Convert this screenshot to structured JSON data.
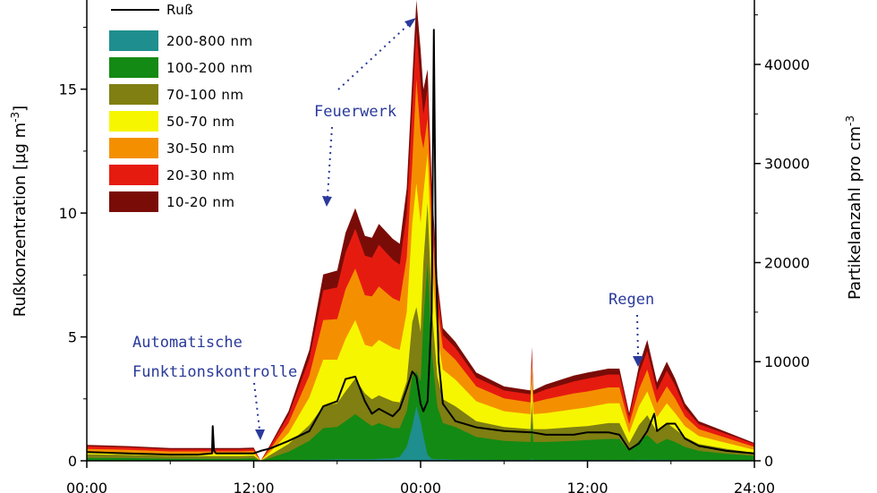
{
  "chart_data": {
    "type": "area",
    "title": "",
    "xlabel": "",
    "ylabel_left": "Rußkonzentration [µg m-3]",
    "ylabel_left_main": "Rußkonzentration [µg m",
    "ylabel_left_sup": "-3",
    "ylabel_left_end": "]",
    "ylabel_right": "Partikelanzahl pro cm-3",
    "ylabel_right_main": "Partikelanzahl pro cm",
    "ylabel_right_sup": "-3",
    "x_unit": "hours since 00:00 of day 1",
    "xlim": [
      0,
      48
    ],
    "ylim_left": [
      0,
      18.6
    ],
    "ylim_right": [
      0,
      46500
    ],
    "x_ticks": [
      {
        "value": 0,
        "label": "00:00"
      },
      {
        "value": 12,
        "label": "12:00"
      },
      {
        "value": 24,
        "label": "00:00"
      },
      {
        "value": 36,
        "label": "12:00"
      },
      {
        "value": 48,
        "label": "24:00"
      }
    ],
    "y_left_ticks": [
      {
        "value": 0,
        "label": "0"
      },
      {
        "value": 5,
        "label": "5"
      },
      {
        "value": 10,
        "label": "10"
      },
      {
        "value": 15,
        "label": "15"
      }
    ],
    "y_right_ticks": [
      {
        "value": 0,
        "label": "0"
      },
      {
        "value": 10000,
        "label": "10000"
      },
      {
        "value": 20000,
        "label": "20000"
      },
      {
        "value": 30000,
        "label": "30000"
      },
      {
        "value": 40000,
        "label": "40000"
      }
    ],
    "x": [
      0,
      3,
      6,
      8,
      9,
      9.1,
      9.3,
      11,
      12,
      12.5,
      13.2,
      14.5,
      16,
      17,
      18,
      18.6,
      19.3,
      20,
      20.5,
      21,
      22,
      22.5,
      23,
      23.4,
      23.7,
      24,
      24.2,
      24.5,
      24.8,
      25.2,
      25.6,
      26.5,
      28,
      30,
      31.9,
      32,
      32.1,
      33,
      35,
      36,
      37.5,
      38.3,
      39,
      39.7,
      40.3,
      41,
      41.7,
      42.3,
      43,
      44,
      46,
      48
    ],
    "series": [
      {
        "name": "200-800 nm",
        "color": "#1f8e8e",
        "values": [
          30,
          30,
          30,
          30,
          30,
          30,
          30,
          30,
          30,
          0,
          30,
          60,
          100,
          120,
          150,
          150,
          150,
          150,
          150,
          200,
          250,
          400,
          1400,
          3500,
          5500,
          4000,
          2500,
          600,
          200,
          150,
          150,
          120,
          100,
          90,
          90,
          200,
          90,
          80,
          80,
          80,
          90,
          90,
          60,
          120,
          120,
          100,
          100,
          90,
          80,
          60,
          50,
          40
        ]
      },
      {
        "name": "100-200 nm",
        "color": "#138a13",
        "values": [
          300,
          280,
          200,
          200,
          200,
          200,
          200,
          200,
          250,
          0,
          300,
          900,
          2000,
          3300,
          3400,
          4000,
          4700,
          4000,
          3500,
          3800,
          3300,
          3300,
          5000,
          8500,
          9000,
          8000,
          14000,
          20000,
          11000,
          5500,
          3800,
          3400,
          2400,
          2000,
          1900,
          4000,
          1900,
          1900,
          2000,
          2100,
          2200,
          2200,
          1000,
          2000,
          2600,
          1700,
          2200,
          1900,
          1400,
          1000,
          700,
          500
        ]
      },
      {
        "name": "70-100 nm",
        "color": "#7f7f12",
        "values": [
          650,
          600,
          500,
          480,
          480,
          480,
          480,
          480,
          520,
          0,
          600,
          1700,
          3600,
          5500,
          5800,
          7000,
          8300,
          6800,
          6200,
          6600,
          6000,
          5900,
          8000,
          14000,
          15500,
          13000,
          20000,
          26000,
          15500,
          8500,
          6200,
          5500,
          4000,
          3400,
          3200,
          6000,
          3200,
          3200,
          3400,
          3500,
          3800,
          3800,
          1800,
          3600,
          4600,
          2900,
          3800,
          3200,
          2400,
          1700,
          1200,
          800
        ]
      },
      {
        "name": "50-70 nm",
        "color": "#f6f600",
        "values": [
          900,
          850,
          700,
          700,
          700,
          700,
          700,
          700,
          750,
          0,
          900,
          2800,
          6400,
          10200,
          10200,
          12300,
          14200,
          11700,
          11500,
          12200,
          11400,
          11200,
          15000,
          24000,
          28000,
          24000,
          27000,
          31000,
          20000,
          12500,
          9200,
          8200,
          6000,
          5000,
          4700,
          8500,
          4700,
          4800,
          5200,
          5400,
          5800,
          5800,
          2800,
          5500,
          7000,
          4400,
          5800,
          4800,
          3500,
          2500,
          1800,
          1100
        ]
      },
      {
        "name": "30-50 nm",
        "color": "#f49000",
        "values": [
          1200,
          1100,
          950,
          950,
          950,
          950,
          950,
          950,
          1000,
          0,
          1200,
          3800,
          8600,
          14200,
          14300,
          17300,
          19400,
          16700,
          16600,
          17600,
          16400,
          16100,
          20500,
          30000,
          38500,
          33000,
          31500,
          34500,
          24000,
          15500,
          11400,
          10200,
          7500,
          6300,
          5900,
          10000,
          5900,
          6200,
          6800,
          7000,
          7400,
          7400,
          3700,
          7200,
          9200,
          5800,
          7500,
          6300,
          4500,
          3200,
          2300,
          1400
        ]
      },
      {
        "name": "20-30 nm",
        "color": "#e61b10",
        "values": [
          1450,
          1350,
          1150,
          1150,
          1150,
          1150,
          1150,
          1150,
          1200,
          0,
          1500,
          4600,
          10300,
          17200,
          17500,
          21000,
          23400,
          20700,
          20500,
          21800,
          20300,
          19800,
          25000,
          35500,
          43500,
          38000,
          35000,
          37500,
          26500,
          17300,
          12700,
          11400,
          8400,
          7100,
          6700,
          11000,
          6700,
          7200,
          8000,
          8300,
          8700,
          8700,
          4400,
          8800,
          11100,
          7100,
          9100,
          7600,
          5300,
          3700,
          2700,
          1700
        ]
      },
      {
        "name": "10-20 nm",
        "color": "#7a0c08",
        "values": [
          1600,
          1480,
          1280,
          1280,
          1280,
          1280,
          1280,
          1280,
          1330,
          0,
          1650,
          5000,
          11200,
          18800,
          19200,
          23000,
          25500,
          22700,
          22500,
          23900,
          22400,
          21900,
          27500,
          38500,
          46500,
          41500,
          37500,
          39500,
          28000,
          18300,
          13400,
          12000,
          8900,
          7500,
          7100,
          11500,
          7100,
          7700,
          8600,
          8900,
          9300,
          9300,
          4800,
          9600,
          12200,
          7900,
          10000,
          8300,
          5800,
          4000,
          2900,
          1800
        ]
      }
    ],
    "russ": {
      "name": "Ruß",
      "color": "#000000",
      "x": [
        0,
        3,
        6,
        8,
        9,
        9.05,
        9.15,
        9.3,
        11,
        12,
        12.5,
        13.2,
        14.5,
        16,
        17,
        18,
        18.6,
        19.3,
        20,
        20.5,
        21,
        22,
        22.5,
        23,
        23.4,
        23.7,
        24,
        24.2,
        24.5,
        24.8,
        24.95,
        25.1,
        25.3,
        25.6,
        26.5,
        28,
        30,
        32,
        33,
        35,
        36,
        37.5,
        38.3,
        39,
        39.7,
        40.3,
        40.8,
        41,
        41.7,
        42.3,
        43,
        44,
        46,
        48
      ],
      "values": [
        0.35,
        0.3,
        0.25,
        0.25,
        0.3,
        1.4,
        0.4,
        0.3,
        0.3,
        0.3,
        0.4,
        0.5,
        0.8,
        1.2,
        2.2,
        2.4,
        3.3,
        3.4,
        2.4,
        1.9,
        2.1,
        1.8,
        2.1,
        2.9,
        3.6,
        3.4,
        2.3,
        2.0,
        2.4,
        6.0,
        17.4,
        8.0,
        4.0,
        2.3,
        1.6,
        1.35,
        1.2,
        1.15,
        1.05,
        1.05,
        1.15,
        1.15,
        1.05,
        0.45,
        0.7,
        1.2,
        1.9,
        1.2,
        1.5,
        1.5,
        0.9,
        0.6,
        0.4,
        0.3
      ]
    },
    "legend": [
      {
        "label": "Ruß",
        "kind": "line",
        "color": "#000000"
      },
      {
        "label": "200-800 nm",
        "kind": "box",
        "color": "#1f8e8e"
      },
      {
        "label": "100-200 nm",
        "kind": "box",
        "color": "#138a13"
      },
      {
        "label": "70-100 nm",
        "kind": "box",
        "color": "#7f7f12"
      },
      {
        "label": "50-70 nm",
        "kind": "box",
        "color": "#f6f600"
      },
      {
        "label": "30-50 nm",
        "kind": "box",
        "color": "#f49000"
      },
      {
        "label": "20-30 nm",
        "kind": "box",
        "color": "#e61b10"
      },
      {
        "label": "10-20 nm",
        "kind": "box",
        "color": "#7a0c08"
      }
    ],
    "legend_position": "top-left",
    "annotations": {
      "feuerwerk": "Feuerwerk",
      "automatische": "Automatische",
      "funktionskontrolle": "Funktionskontrolle",
      "regen": "Regen"
    }
  }
}
